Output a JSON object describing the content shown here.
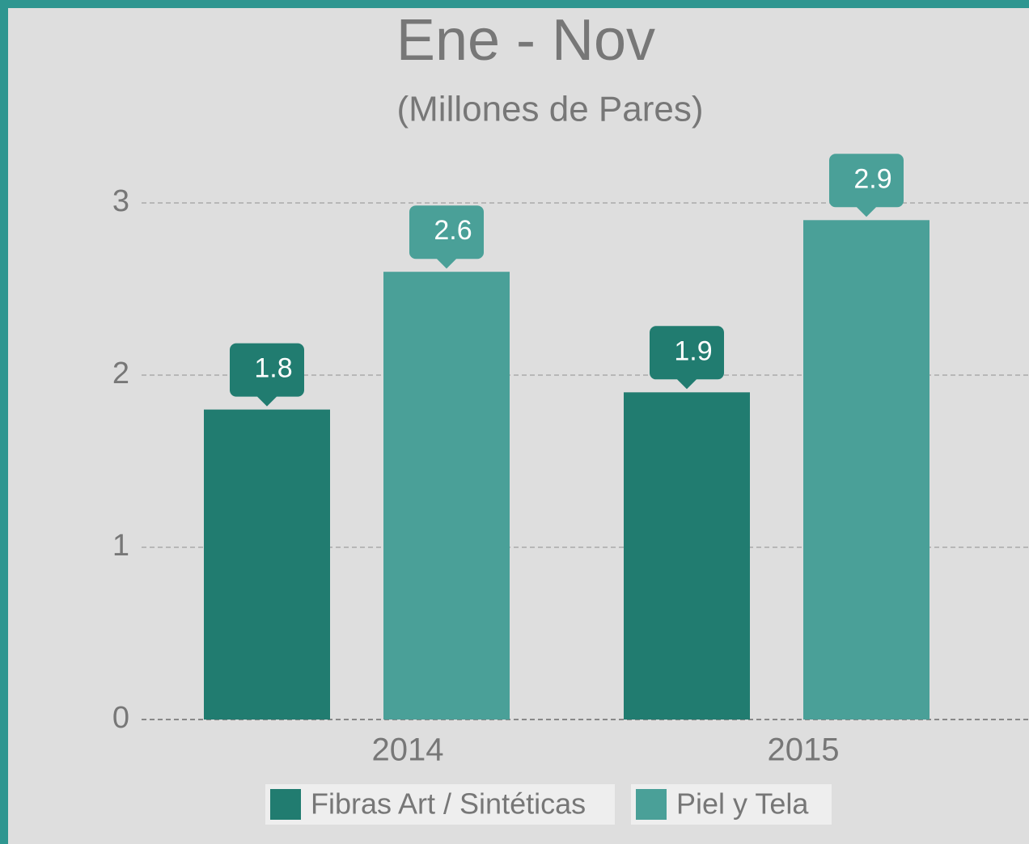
{
  "chart_data": {
    "type": "bar",
    "title": "Ene - Nov",
    "subtitle": "(Millones de Pares)",
    "categories": [
      "2014",
      "2015"
    ],
    "series": [
      {
        "name": "Fibras Art / Sintéticas",
        "color": "#217c70",
        "values": [
          1.8,
          1.9
        ]
      },
      {
        "name": "Piel y Tela",
        "color": "#4aa098",
        "values": [
          2.6,
          2.9
        ]
      }
    ],
    "ylim": [
      0,
      3
    ],
    "yticks": [
      0,
      1,
      2,
      3
    ],
    "grid": true,
    "legend": "bottom"
  }
}
